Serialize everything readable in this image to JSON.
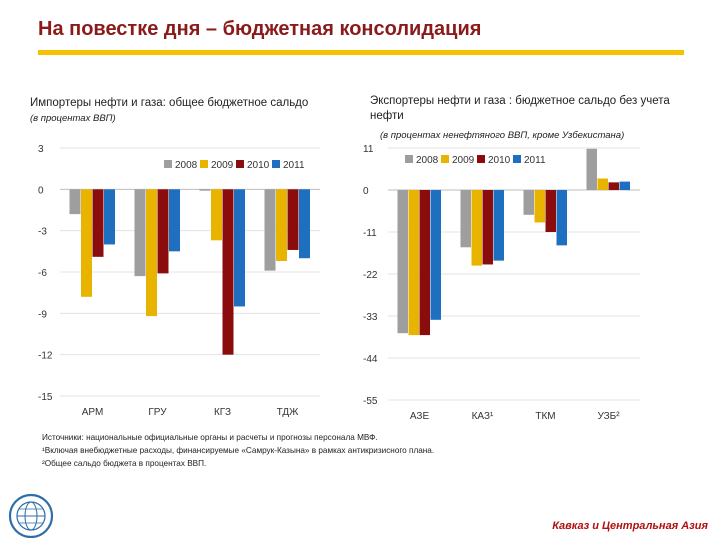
{
  "page": {
    "title": "На повестке дня – бюджетная консолидация",
    "notes": [
      "Источники: национальные официальные органы и расчеты и прогнозы персонала МВФ.",
      "¹Включая внебюджетные расходы, финансируемые «Самрук-Казына» в рамках антикризисного плана.",
      "²Общее сальдо бюджета в процентах ВВП."
    ],
    "region_label": "Кавказ и Центральная Азия"
  },
  "colors": {
    "title": "#8b1a1a",
    "accent_rule": "#f5c200",
    "series": [
      "#9e9e9e",
      "#e8b400",
      "#8b0c0c",
      "#1f6fc0"
    ]
  },
  "chart_data": [
    {
      "type": "bar",
      "title": "Импортеры нефти и газа: общее бюджетное сальдо",
      "subtitle": "(в процентах ВВП)",
      "categories": [
        "АРМ",
        "ГРУ",
        "КГЗ",
        "ТДЖ"
      ],
      "series": [
        {
          "name": "2008",
          "values": [
            -1.8,
            -6.3,
            -0.1,
            -5.9
          ]
        },
        {
          "name": "2009",
          "values": [
            -7.8,
            -9.2,
            -3.7,
            -5.2
          ]
        },
        {
          "name": "2010",
          "values": [
            -4.9,
            -6.1,
            -12.0,
            -4.4
          ]
        },
        {
          "name": "2011",
          "values": [
            -4.0,
            -4.5,
            -8.5,
            -5.0
          ]
        }
      ],
      "yticks": [
        3,
        0,
        -3,
        -6,
        -9,
        -12,
        -15
      ],
      "ytick_labels": [
        "3",
        "0",
        "-3",
        "-6",
        "-9",
        "-12",
        "-15"
      ],
      "ylim": [
        -15,
        3
      ],
      "legend": "top-right"
    },
    {
      "type": "bar",
      "title": "Экспортеры нефти и газа : бюджетное сальдо без учета нефти",
      "subtitle": "(в процентах ненефтяного ВВП, кроме Узбекистана)",
      "categories": [
        "АЗЕ",
        "КАЗ¹",
        "ТКМ",
        "УЗБ²"
      ],
      "series": [
        {
          "name": "2008",
          "values": [
            -37.5,
            -15.0,
            -6.5,
            10.8
          ]
        },
        {
          "name": "2009",
          "values": [
            -38.0,
            -19.8,
            -8.5,
            3.0
          ]
        },
        {
          "name": "2010",
          "values": [
            -38.0,
            -19.5,
            -11.0,
            2.0
          ]
        },
        {
          "name": "2011",
          "values": [
            -34.0,
            -18.5,
            -14.5,
            2.2
          ]
        }
      ],
      "yticks": [
        11,
        0,
        -11,
        -22,
        -33,
        -44,
        -55
      ],
      "ytick_labels": [
        "11",
        "0",
        "-11",
        "-22",
        "-33",
        "-44",
        "-55"
      ],
      "ylim": [
        -55,
        11
      ],
      "legend": "top-center"
    }
  ]
}
